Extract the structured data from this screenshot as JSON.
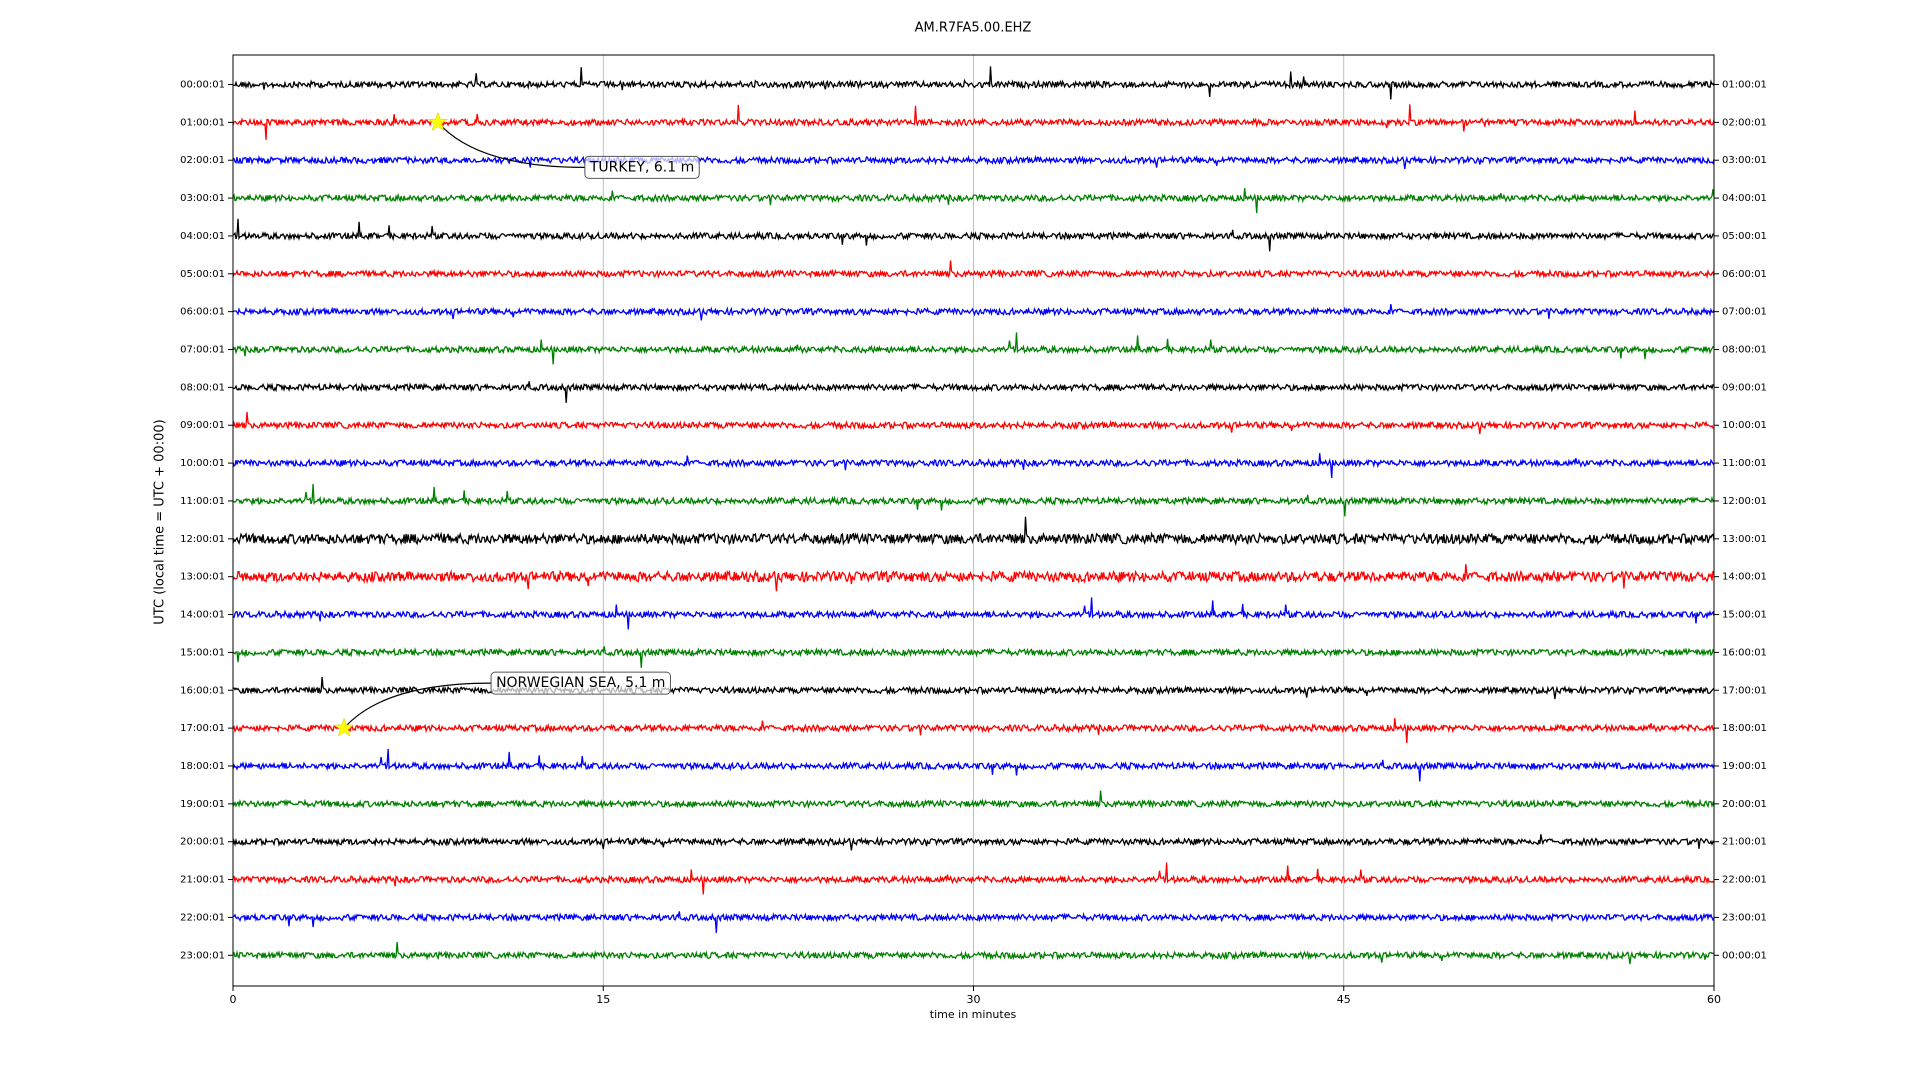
{
  "chart_data": {
    "type": "dayplot",
    "title": "AM.R7FA5.00.EHZ",
    "xlabel": "time in minutes",
    "ylabel": "UTC (local time = UTC + 00:00)",
    "xlim": [
      0,
      60
    ],
    "xticks": [
      0,
      15,
      30,
      45,
      60
    ],
    "grid": true,
    "colors": [
      "#000000",
      "#ff0000",
      "#0000ff",
      "#008000"
    ],
    "left_labels": [
      "00:00:01",
      "01:00:01",
      "02:00:01",
      "03:00:01",
      "04:00:01",
      "05:00:01",
      "06:00:01",
      "07:00:01",
      "08:00:01",
      "09:00:01",
      "10:00:01",
      "11:00:01",
      "12:00:01",
      "13:00:01",
      "14:00:01",
      "15:00:01",
      "16:00:01",
      "17:00:01",
      "18:00:01",
      "19:00:01",
      "20:00:01",
      "21:00:01",
      "22:00:01",
      "23:00:01"
    ],
    "right_labels": [
      "01:00:01",
      "02:00:01",
      "03:00:01",
      "04:00:01",
      "05:00:01",
      "06:00:01",
      "07:00:01",
      "08:00:01",
      "09:00:01",
      "10:00:01",
      "11:00:01",
      "12:00:01",
      "13:00:01",
      "14:00:01",
      "15:00:01",
      "16:00:01",
      "17:00:01",
      "18:00:01",
      "19:00:01",
      "20:00:01",
      "21:00:01",
      "22:00:01",
      "23:00:01",
      "00:00:01"
    ],
    "events": [
      {
        "label": "TURKEY, 6.1 m",
        "minute": 8.3,
        "row": 1
      },
      {
        "label": "NORWEGIAN SEA, 5.1 m",
        "minute": 4.5,
        "row": 17
      }
    ]
  }
}
